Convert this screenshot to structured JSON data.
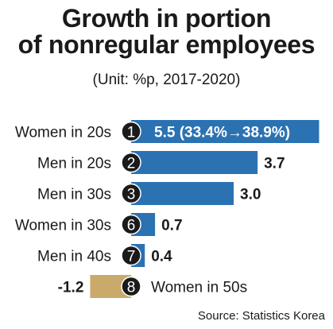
{
  "title_line1": "Growth in portion",
  "title_line2": "of nonregular employees",
  "subtitle": "(Unit: %p, 2017-2020)",
  "source": "Source: Statistics Korea",
  "colors": {
    "positive": "#2b72b2",
    "negative": "#c9aa6a",
    "badge": "#1a1a1a"
  },
  "chart_data": {
    "type": "bar",
    "orientation": "horizontal",
    "categories": [
      "Women in 20s",
      "Men in 20s",
      "Men in 30s",
      "Women in 30s",
      "Men in 40s",
      "Women in 50s"
    ],
    "ranks": [
      "1",
      "2",
      "3",
      "6",
      "7",
      "8"
    ],
    "values": [
      5.5,
      3.7,
      3.0,
      0.7,
      0.4,
      -1.2
    ],
    "value_labels": [
      "5.5 (33.4%→38.9%)",
      "3.7",
      "3.0",
      "0.7",
      "0.4",
      "-1.2"
    ],
    "unit": "%p"
  }
}
